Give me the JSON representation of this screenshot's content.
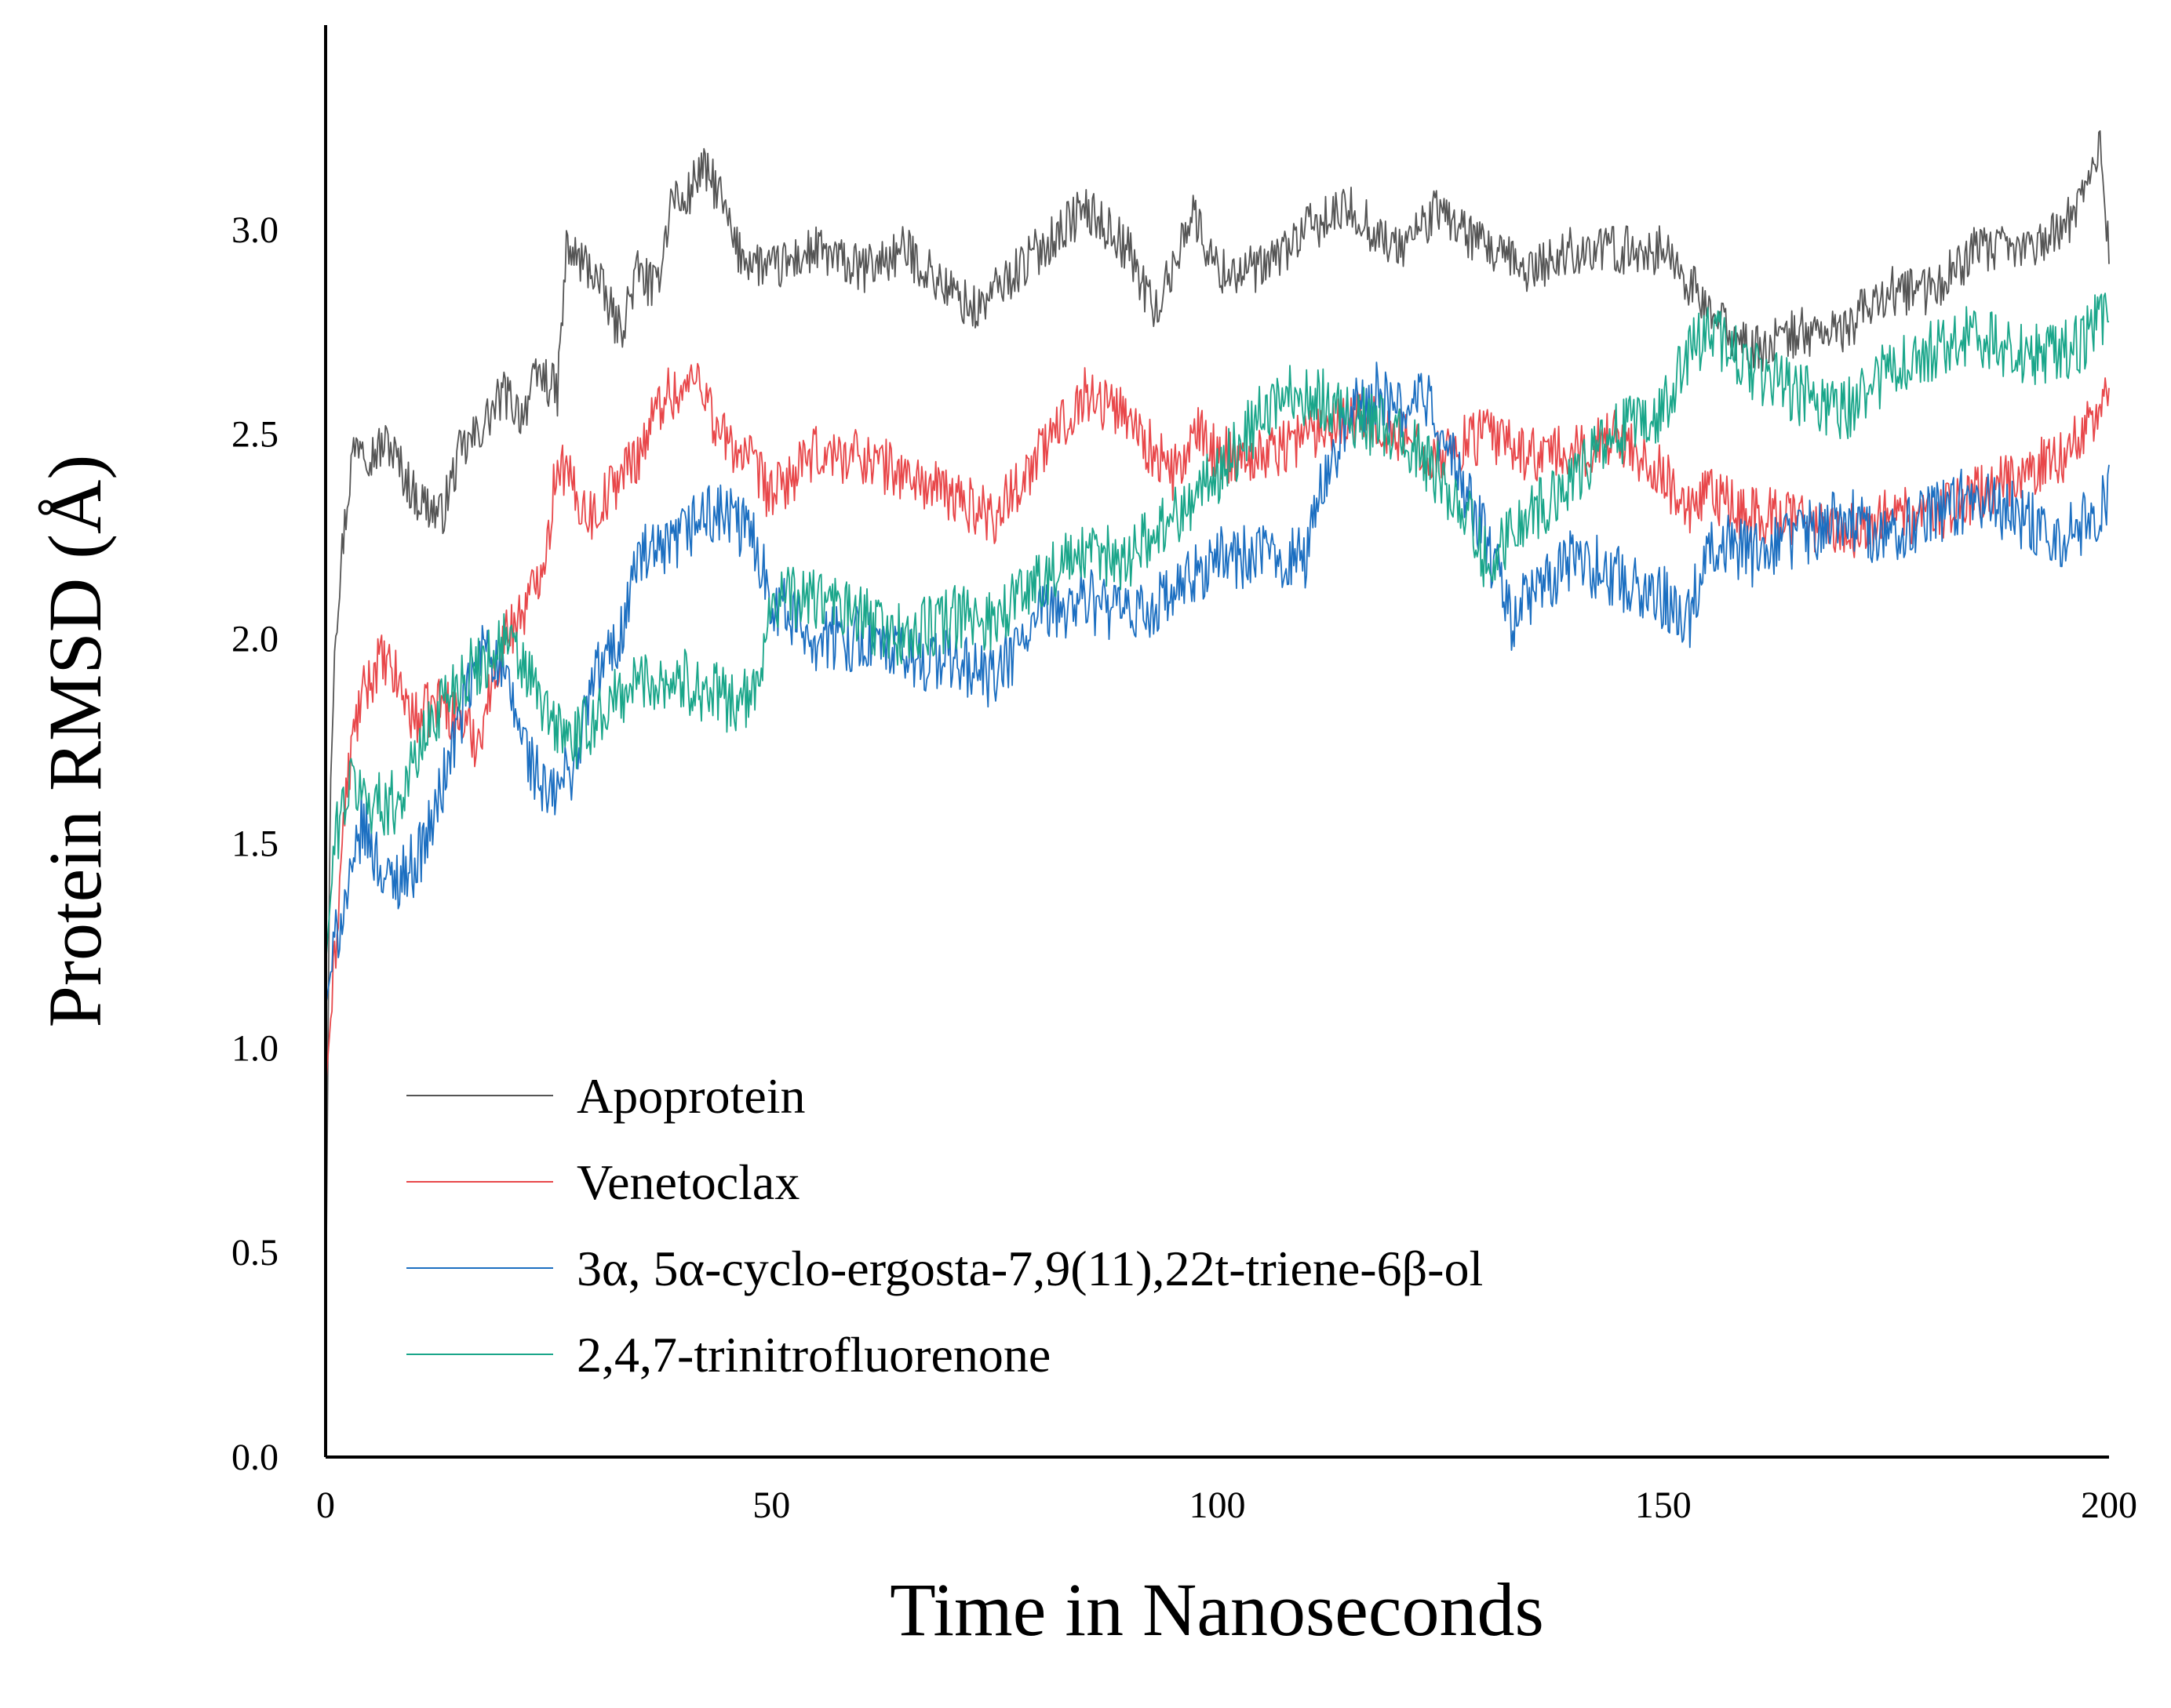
{
  "chart_data": {
    "type": "line",
    "title": "",
    "xlabel": "Time in Nanoseconds",
    "ylabel": "Protein RMSD (Å)",
    "xlim": [
      0,
      200
    ],
    "ylim": [
      0,
      3.5
    ],
    "xticks": [
      "0",
      "50",
      "100",
      "150",
      "200"
    ],
    "yticks": [
      "0.0",
      "0.5",
      "1.0",
      "1.5",
      "2.0",
      "2.5",
      "3.0"
    ],
    "grid": false,
    "legend_position": "bottom-left",
    "series": [
      {
        "name": "Apoprotein",
        "color": "#555555",
        "x": [
          0,
          0.5,
          1,
          2,
          3,
          4,
          5,
          7,
          10,
          13,
          15,
          17,
          20,
          22,
          24,
          26,
          27,
          30,
          33,
          35,
          37,
          39,
          40,
          42,
          44,
          46,
          50,
          55,
          60,
          65,
          70,
          73,
          75,
          80,
          85,
          88,
          90,
          93,
          95,
          97,
          100,
          105,
          110,
          115,
          120,
          125,
          130,
          135,
          140,
          145,
          150,
          152,
          155,
          160,
          165,
          170,
          175,
          180,
          185,
          190,
          195,
          198,
          199,
          200
        ],
        "values": [
          0.3,
          1.6,
          2.0,
          2.25,
          2.45,
          2.5,
          2.45,
          2.48,
          2.35,
          2.3,
          2.45,
          2.5,
          2.6,
          2.55,
          2.65,
          2.6,
          2.95,
          2.9,
          2.75,
          2.9,
          2.85,
          3.1,
          3.05,
          3.15,
          3.1,
          2.95,
          2.9,
          2.95,
          2.9,
          2.95,
          2.85,
          2.8,
          2.85,
          2.95,
          3.05,
          3.0,
          2.95,
          2.8,
          2.9,
          3.05,
          2.9,
          2.9,
          3.0,
          3.05,
          2.95,
          3.05,
          2.95,
          2.9,
          2.95,
          2.95,
          2.95,
          2.9,
          2.8,
          2.7,
          2.75,
          2.75,
          2.85,
          2.85,
          2.95,
          2.95,
          3.0,
          3.15,
          3.2,
          2.95
        ],
        "noise": 0.06
      },
      {
        "name": "Venetoclax",
        "color": "#e8474a",
        "x": [
          0,
          1,
          2,
          3,
          4,
          6,
          8,
          10,
          13,
          15,
          17,
          20,
          23,
          25,
          26,
          28,
          30,
          33,
          35,
          38,
          40,
          42,
          44,
          47,
          50,
          55,
          60,
          65,
          70,
          75,
          80,
          85,
          90,
          93,
          95,
          98,
          100,
          105,
          110,
          115,
          120,
          125,
          130,
          135,
          140,
          145,
          150,
          153,
          155,
          160,
          165,
          170,
          175,
          180,
          185,
          190,
          195,
          200
        ],
        "values": [
          0.9,
          1.2,
          1.55,
          1.75,
          1.85,
          1.95,
          1.9,
          1.8,
          1.85,
          1.8,
          1.75,
          2.0,
          2.1,
          2.25,
          2.45,
          2.35,
          2.3,
          2.4,
          2.45,
          2.6,
          2.6,
          2.65,
          2.5,
          2.45,
          2.35,
          2.45,
          2.45,
          2.4,
          2.35,
          2.3,
          2.45,
          2.6,
          2.55,
          2.45,
          2.4,
          2.5,
          2.45,
          2.45,
          2.5,
          2.55,
          2.5,
          2.45,
          2.5,
          2.45,
          2.45,
          2.5,
          2.4,
          2.3,
          2.35,
          2.3,
          2.3,
          2.25,
          2.3,
          2.3,
          2.35,
          2.4,
          2.45,
          2.6
        ],
        "noise": 0.07
      },
      {
        "name": "3α, 5α-cyclo-ergosta-7,9(11),22t-triene-6β-ol",
        "color": "#1c6fc1",
        "x": [
          0,
          1,
          2,
          3,
          4,
          5,
          7,
          10,
          12,
          15,
          18,
          20,
          23,
          25,
          28,
          30,
          33,
          35,
          38,
          40,
          42,
          45,
          48,
          50,
          55,
          60,
          65,
          70,
          75,
          80,
          85,
          90,
          95,
          100,
          105,
          110,
          112,
          115,
          118,
          120,
          123,
          125,
          130,
          133,
          135,
          138,
          140,
          145,
          150,
          153,
          155,
          160,
          165,
          170,
          175,
          180,
          185,
          190,
          195,
          198,
          200
        ],
        "values": [
          1.1,
          1.25,
          1.35,
          1.4,
          1.55,
          1.5,
          1.4,
          1.45,
          1.55,
          1.8,
          2.0,
          1.9,
          1.7,
          1.6,
          1.7,
          1.9,
          2.0,
          2.2,
          2.2,
          2.25,
          2.3,
          2.3,
          2.25,
          2.1,
          2.0,
          2.0,
          1.95,
          1.95,
          1.9,
          2.05,
          2.1,
          2.05,
          2.1,
          2.2,
          2.2,
          2.2,
          2.4,
          2.55,
          2.6,
          2.55,
          2.6,
          2.5,
          2.25,
          2.05,
          2.1,
          2.15,
          2.2,
          2.15,
          2.1,
          2.05,
          2.25,
          2.2,
          2.25,
          2.3,
          2.25,
          2.3,
          2.35,
          2.3,
          2.25,
          2.3,
          2.35
        ],
        "noise": 0.08
      },
      {
        "name": "2,4,7-trinitrofluorenone",
        "color": "#1aa68a",
        "x": [
          0,
          1,
          2,
          3,
          5,
          8,
          10,
          13,
          15,
          18,
          20,
          23,
          25,
          28,
          30,
          35,
          40,
          45,
          48,
          50,
          55,
          60,
          65,
          70,
          75,
          80,
          85,
          90,
          95,
          100,
          105,
          108,
          110,
          115,
          120,
          125,
          128,
          130,
          135,
          140,
          145,
          150,
          153,
          155,
          158,
          160,
          165,
          170,
          175,
          180,
          185,
          190,
          195,
          198,
          200
        ],
        "values": [
          1.2,
          1.5,
          1.6,
          1.65,
          1.6,
          1.6,
          1.7,
          1.85,
          1.9,
          1.95,
          2.0,
          1.9,
          1.8,
          1.75,
          1.8,
          1.9,
          1.9,
          1.85,
          1.85,
          2.1,
          2.1,
          2.05,
          2.0,
          2.05,
          2.05,
          2.15,
          2.2,
          2.2,
          2.3,
          2.4,
          2.55,
          2.6,
          2.6,
          2.55,
          2.5,
          2.4,
          2.3,
          2.2,
          2.3,
          2.4,
          2.5,
          2.55,
          2.7,
          2.75,
          2.7,
          2.65,
          2.6,
          2.55,
          2.65,
          2.7,
          2.75,
          2.7,
          2.7,
          2.75,
          2.8
        ],
        "noise": 0.08
      }
    ]
  }
}
